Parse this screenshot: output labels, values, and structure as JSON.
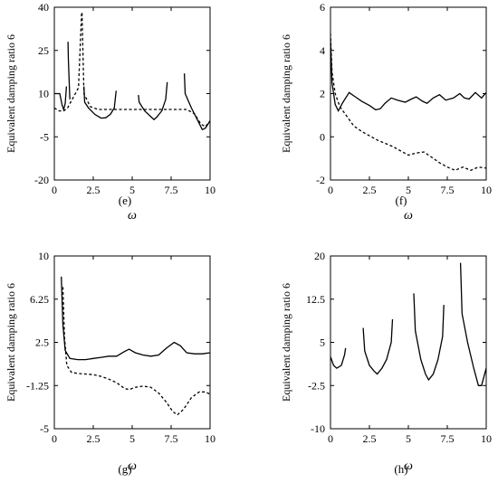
{
  "chart_data": [
    {
      "panel": "(e)",
      "type": "line",
      "xlabel": "ω",
      "ylabel": "Equivalent damping ratio 6",
      "xlim": [
        0,
        10
      ],
      "ylim": [
        -20,
        40
      ],
      "xticks": [
        "0",
        "2.5",
        "5",
        "7.5",
        "10"
      ],
      "yticks": [
        "-20",
        "-5",
        "10",
        "25",
        "40"
      ],
      "series": [
        {
          "style": "solid",
          "segments": [
            [
              [
                0,
                10
              ],
              [
                0.35,
                10
              ],
              [
                0.5,
                6
              ],
              [
                0.6,
                4.5
              ],
              [
                0.7,
                6.5
              ],
              [
                0.78,
                12.5
              ]
            ],
            [
              [
                0.88,
                28
              ],
              [
                0.9,
                22
              ],
              [
                0.98,
                10
              ],
              [
                1.0,
                8
              ]
            ],
            [
              [
                1.9,
                12.5
              ],
              [
                1.95,
                7
              ],
              [
                2.2,
                5
              ],
              [
                2.6,
                2.8
              ],
              [
                3.0,
                1.5
              ],
              [
                3.3,
                1.6
              ],
              [
                3.6,
                2.8
              ],
              [
                3.85,
                5
              ],
              [
                3.97,
                11
              ]
            ],
            [
              [
                5.4,
                9.5
              ],
              [
                5.45,
                7
              ],
              [
                5.8,
                4
              ],
              [
                6.2,
                2
              ],
              [
                6.4,
                1
              ],
              [
                6.6,
                2
              ],
              [
                6.9,
                4
              ],
              [
                7.15,
                8
              ],
              [
                7.25,
                14
              ]
            ],
            [
              [
                8.35,
                17
              ],
              [
                8.4,
                10
              ],
              [
                8.8,
                5
              ],
              [
                9.2,
                0.8
              ],
              [
                9.5,
                -2.5
              ],
              [
                9.7,
                -2
              ],
              [
                10,
                0.5
              ]
            ]
          ]
        },
        {
          "style": "dashed",
          "segments": [
            [
              [
                0,
                5
              ],
              [
                0.3,
                4
              ],
              [
                0.6,
                4
              ],
              [
                0.85,
                5
              ],
              [
                1.2,
                8.5
              ],
              [
                1.55,
                12
              ],
              [
                1.75,
                38
              ]
            ],
            [
              [
                1.78,
                38
              ],
              [
                1.9,
                10
              ],
              [
                2.3,
                5.5
              ],
              [
                2.8,
                4.5
              ],
              [
                3.3,
                4.5
              ],
              [
                4.0,
                4.5
              ],
              [
                6.0,
                4.5
              ],
              [
                8.0,
                4.5
              ],
              [
                8.5,
                4.5
              ],
              [
                9.0,
                3
              ],
              [
                9.4,
                -0.5
              ],
              [
                9.7,
                -1.5
              ],
              [
                10,
                0.5
              ]
            ]
          ]
        }
      ]
    },
    {
      "panel": "(f)",
      "type": "line",
      "xlabel": "ω",
      "ylabel": "Equivalent damping ratio 6",
      "xlim": [
        0,
        10
      ],
      "ylim": [
        -2,
        6
      ],
      "xticks": [
        "0",
        "2.5",
        "5",
        "7.5",
        "10"
      ],
      "yticks": [
        "-2",
        "0",
        "2",
        "4",
        "6"
      ],
      "series": [
        {
          "style": "solid",
          "segments": [
            [
              [
                0,
                4.5
              ],
              [
                0.1,
                2.5
              ],
              [
                0.3,
                1.5
              ],
              [
                0.5,
                1.2
              ],
              [
                0.8,
                1.6
              ],
              [
                1.2,
                2.05
              ],
              [
                1.6,
                1.85
              ],
              [
                2.0,
                1.65
              ],
              [
                2.5,
                1.45
              ],
              [
                2.9,
                1.25
              ],
              [
                3.2,
                1.3
              ],
              [
                3.5,
                1.55
              ],
              [
                3.9,
                1.8
              ],
              [
                4.3,
                1.7
              ],
              [
                4.8,
                1.6
              ],
              [
                5.2,
                1.75
              ],
              [
                5.5,
                1.85
              ],
              [
                5.9,
                1.65
              ],
              [
                6.2,
                1.55
              ],
              [
                6.6,
                1.8
              ],
              [
                7.0,
                1.95
              ],
              [
                7.4,
                1.7
              ],
              [
                7.9,
                1.8
              ],
              [
                8.3,
                2.0
              ],
              [
                8.6,
                1.8
              ],
              [
                8.9,
                1.75
              ],
              [
                9.3,
                2.05
              ],
              [
                9.7,
                1.8
              ],
              [
                10,
                2.05
              ]
            ]
          ]
        },
        {
          "style": "dashed",
          "segments": [
            [
              [
                0,
                4.8
              ],
              [
                0.1,
                3
              ],
              [
                0.3,
                2
              ],
              [
                0.6,
                1.4
              ],
              [
                1.0,
                1.0
              ],
              [
                1.5,
                0.5
              ],
              [
                2.0,
                0.25
              ],
              [
                2.5,
                0.05
              ],
              [
                3.0,
                -0.15
              ],
              [
                3.5,
                -0.3
              ],
              [
                4.0,
                -0.45
              ],
              [
                4.5,
                -0.65
              ],
              [
                5.0,
                -0.85
              ],
              [
                5.5,
                -0.75
              ],
              [
                6.0,
                -0.7
              ],
              [
                6.5,
                -0.95
              ],
              [
                7.0,
                -1.2
              ],
              [
                7.5,
                -1.4
              ],
              [
                8.0,
                -1.55
              ],
              [
                8.5,
                -1.4
              ],
              [
                9.0,
                -1.55
              ],
              [
                9.5,
                -1.4
              ],
              [
                10,
                -1.45
              ]
            ]
          ]
        }
      ]
    },
    {
      "panel": "(g)",
      "type": "line",
      "xlabel": "ω",
      "ylabel": "Equivalent damping ratio 6",
      "xlim": [
        0,
        10
      ],
      "ylim": [
        -5,
        10
      ],
      "xticks": [
        "0",
        "2.5",
        "5",
        "7.5",
        "10"
      ],
      "yticks": [
        "-5",
        "-1.25",
        "2.5",
        "6.25",
        "10"
      ],
      "series": [
        {
          "style": "solid",
          "segments": [
            [
              [
                0.45,
                8.2
              ],
              [
                0.55,
                4
              ],
              [
                0.7,
                1.8
              ],
              [
                1.0,
                1.1
              ],
              [
                1.5,
                1.0
              ],
              [
                2.0,
                1.0
              ],
              [
                2.5,
                1.1
              ],
              [
                3.0,
                1.2
              ],
              [
                3.5,
                1.3
              ],
              [
                4.0,
                1.3
              ],
              [
                4.5,
                1.7
              ],
              [
                4.8,
                1.9
              ],
              [
                5.2,
                1.6
              ],
              [
                5.7,
                1.4
              ],
              [
                6.2,
                1.3
              ],
              [
                6.7,
                1.4
              ],
              [
                7.2,
                2.0
              ],
              [
                7.7,
                2.5
              ],
              [
                8.1,
                2.2
              ],
              [
                8.5,
                1.6
              ],
              [
                9.0,
                1.5
              ],
              [
                9.5,
                1.5
              ],
              [
                10,
                1.6
              ]
            ]
          ]
        },
        {
          "style": "dashed",
          "segments": [
            [
              [
                0.55,
                7.3
              ],
              [
                0.65,
                3
              ],
              [
                0.8,
                0.5
              ],
              [
                1.1,
                -0.1
              ],
              [
                1.5,
                -0.2
              ],
              [
                2.0,
                -0.25
              ],
              [
                2.5,
                -0.3
              ],
              [
                3.0,
                -0.45
              ],
              [
                3.5,
                -0.7
              ],
              [
                4.0,
                -1.0
              ],
              [
                4.5,
                -1.5
              ],
              [
                4.8,
                -1.6
              ],
              [
                5.2,
                -1.4
              ],
              [
                5.7,
                -1.3
              ],
              [
                6.2,
                -1.4
              ],
              [
                6.7,
                -1.9
              ],
              [
                7.2,
                -2.7
              ],
              [
                7.6,
                -3.5
              ],
              [
                7.9,
                -3.8
              ],
              [
                8.3,
                -3.3
              ],
              [
                8.8,
                -2.3
              ],
              [
                9.3,
                -1.8
              ],
              [
                9.7,
                -1.8
              ],
              [
                10,
                -2.0
              ]
            ]
          ]
        }
      ]
    },
    {
      "panel": "(h)",
      "type": "line",
      "xlabel": "ω",
      "ylabel": "Equivalent damping ratio 6",
      "xlim": [
        0,
        10
      ],
      "ylim": [
        -10,
        20
      ],
      "xticks": [
        "0",
        "2.5",
        "5",
        "7.5",
        "10"
      ],
      "yticks": [
        "-10",
        "-2.5",
        "5",
        "12.5",
        "20"
      ],
      "series": [
        {
          "style": "solid",
          "segments": [
            [
              [
                0,
                2.5
              ],
              [
                0.2,
                1
              ],
              [
                0.4,
                0.5
              ],
              [
                0.7,
                1
              ],
              [
                0.9,
                2.8
              ],
              [
                0.97,
                4
              ]
            ],
            [
              [
                2.1,
                7.5
              ],
              [
                2.2,
                3.5
              ],
              [
                2.5,
                1
              ],
              [
                2.8,
                0
              ],
              [
                3.0,
                -0.5
              ],
              [
                3.3,
                0.5
              ],
              [
                3.6,
                2
              ],
              [
                3.9,
                5
              ],
              [
                3.98,
                9
              ]
            ],
            [
              [
                5.35,
                13.5
              ],
              [
                5.45,
                7
              ],
              [
                5.8,
                2
              ],
              [
                6.1,
                -0.5
              ],
              [
                6.3,
                -1.5
              ],
              [
                6.6,
                -0.5
              ],
              [
                6.9,
                2
              ],
              [
                7.2,
                6
              ],
              [
                7.28,
                11.5
              ]
            ],
            [
              [
                8.35,
                18.8
              ],
              [
                8.45,
                10
              ],
              [
                8.8,
                5
              ],
              [
                9.2,
                0.5
              ],
              [
                9.5,
                -2.5
              ],
              [
                9.7,
                -2.5
              ],
              [
                10,
                0.5
              ]
            ]
          ]
        }
      ]
    }
  ]
}
